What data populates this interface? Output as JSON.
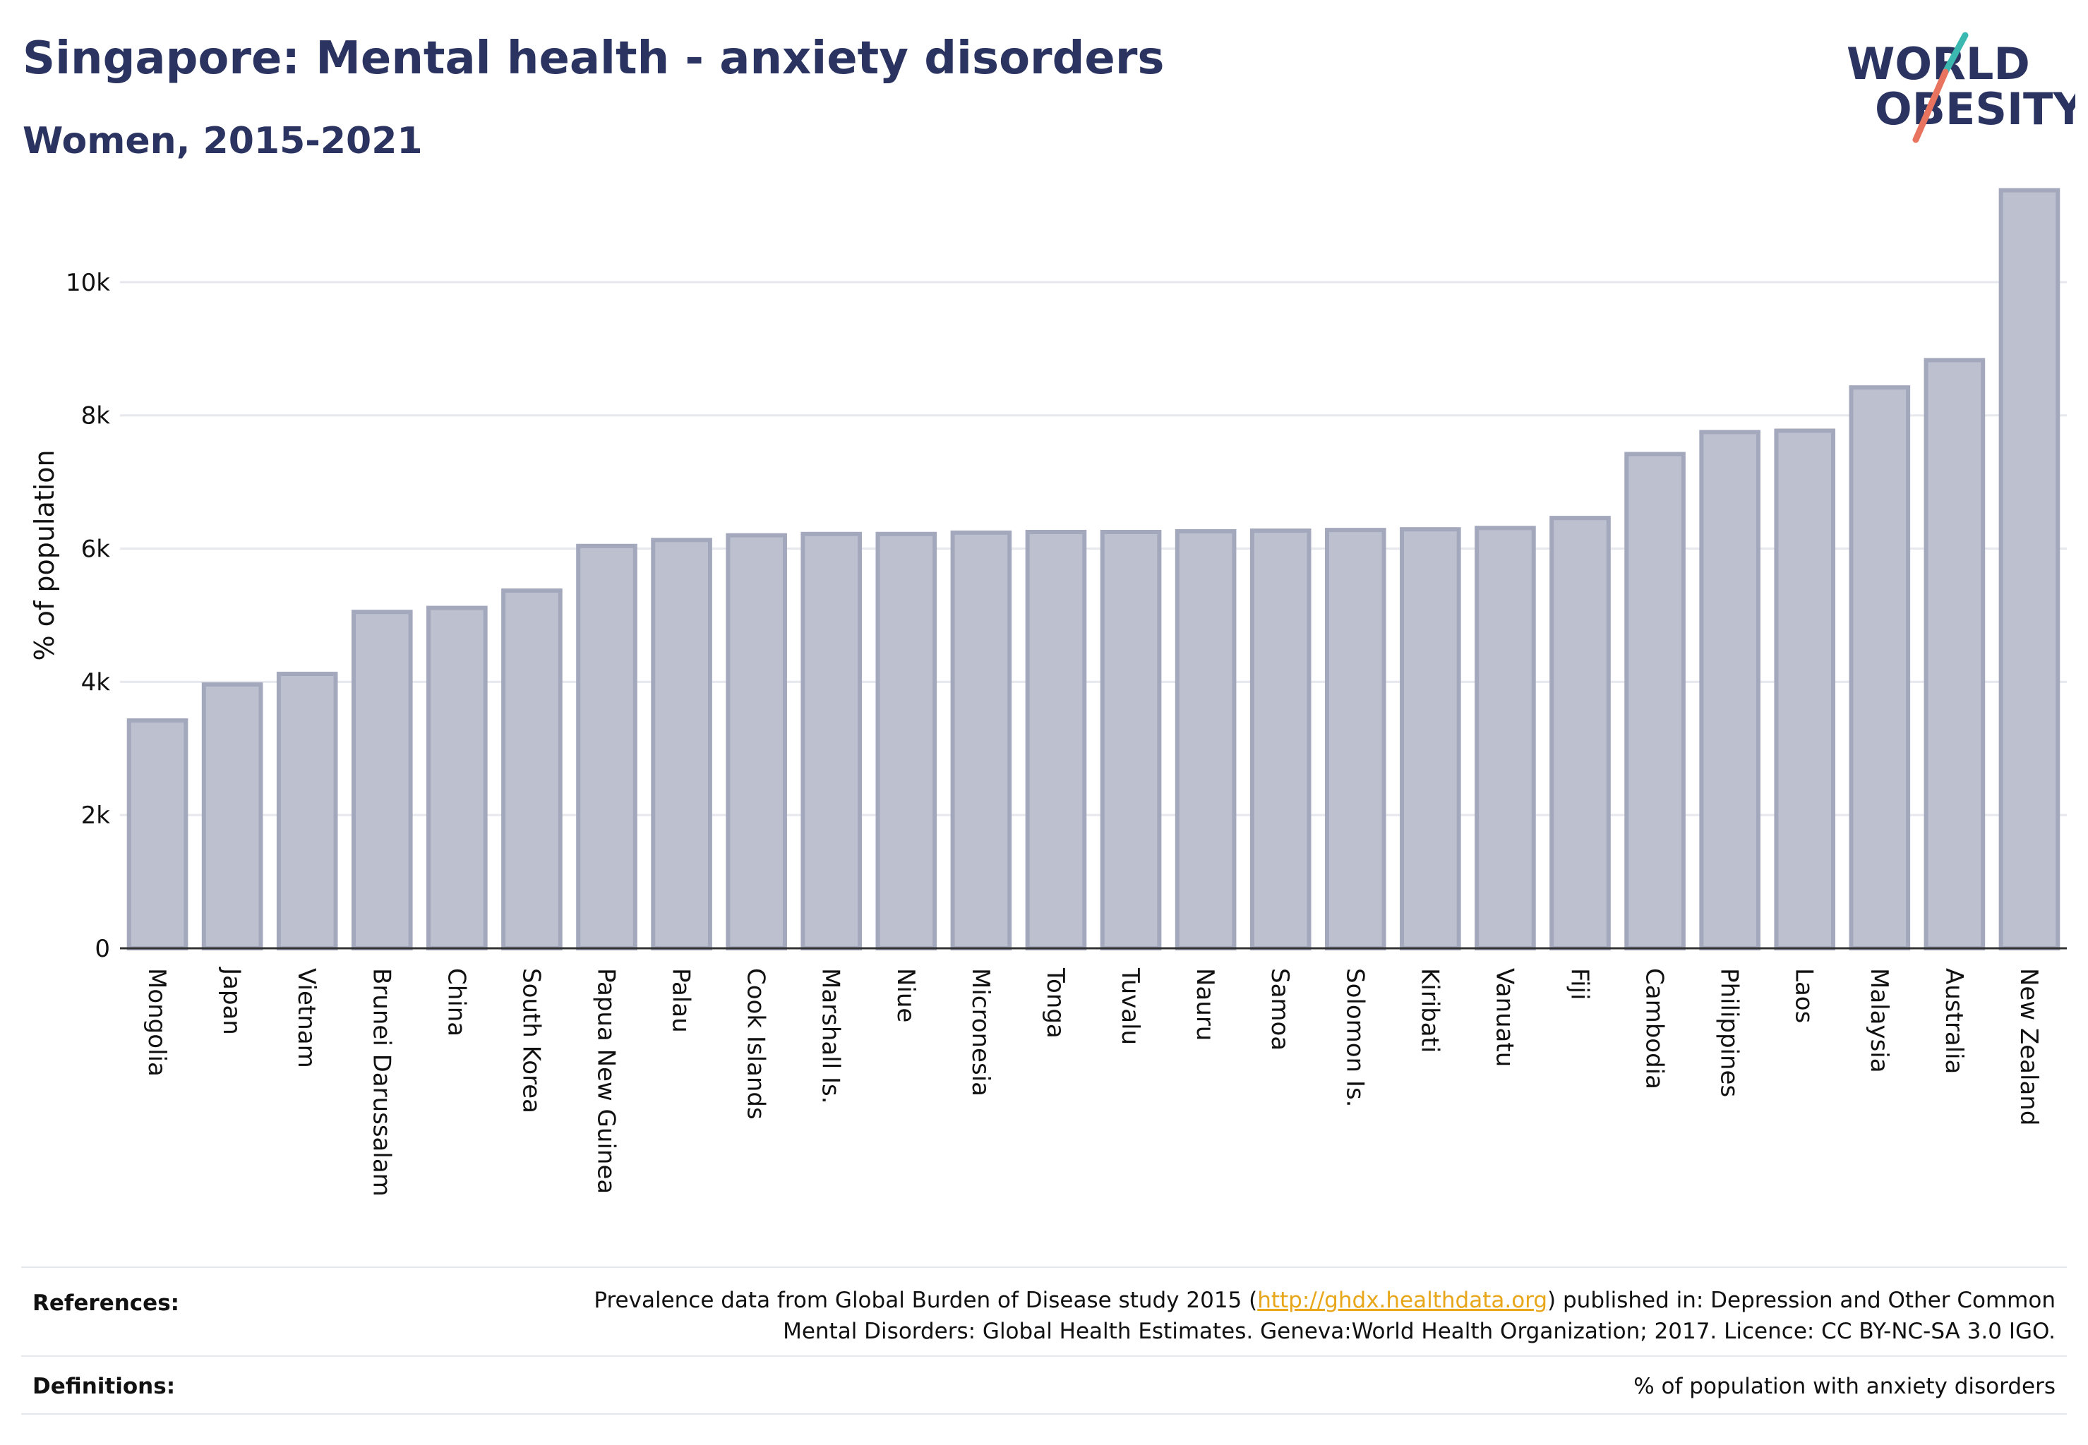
{
  "header": {
    "title": "Singapore: Mental health - anxiety disorders",
    "subtitle": "Women, 2015-2021"
  },
  "logo": {
    "line1": "WORLD",
    "line2": "OBESITY",
    "accent_colors": [
      "#e8735f",
      "#3bb8b0"
    ],
    "text_color": "#2b3460"
  },
  "chart_data": {
    "type": "bar",
    "ylabel": "% of population",
    "ylim": [
      0,
      11800
    ],
    "yticks": [
      0,
      2000,
      4000,
      6000,
      8000,
      10000
    ],
    "ytick_labels": [
      "0",
      "2k",
      "4k",
      "6k",
      "8k",
      "10k"
    ],
    "grid": true,
    "bar_fill": "#bcc0cf",
    "bar_stroke": "#a3a8bd",
    "categories": [
      "Mongolia",
      "Japan",
      "Vietnam",
      "Brunei Darussalam",
      "China",
      "South Korea",
      "Papua New Guinea",
      "Palau",
      "Cook Islands",
      "Marshall Is.",
      "Niue",
      "Micronesia",
      "Tonga",
      "Tuvalu",
      "Nauru",
      "Samoa",
      "Solomon Is.",
      "Kiribati",
      "Vanuatu",
      "Fiji",
      "Cambodia",
      "Philippines",
      "Laos",
      "Malaysia",
      "Australia",
      "New Zealand"
    ],
    "values": [
      3420,
      3960,
      4120,
      5050,
      5110,
      5370,
      6040,
      6130,
      6200,
      6220,
      6220,
      6240,
      6250,
      6250,
      6260,
      6270,
      6280,
      6290,
      6310,
      6460,
      7420,
      7750,
      7770,
      8420,
      8830,
      11380
    ]
  },
  "footer": {
    "references_label": "References:",
    "references_pre": "Prevalence data from Global Burden of Disease study 2015 (",
    "references_link": "http://ghdx.healthdata.org",
    "references_post": ") published in: Depression and Other Common",
    "references_line2": "Mental Disorders: Global Health Estimates. Geneva:World Health Organization; 2017. Licence: CC BY-NC-SA 3.0 IGO.",
    "definitions_label": "Definitions:",
    "definitions_text": "% of population with anxiety disorders"
  }
}
